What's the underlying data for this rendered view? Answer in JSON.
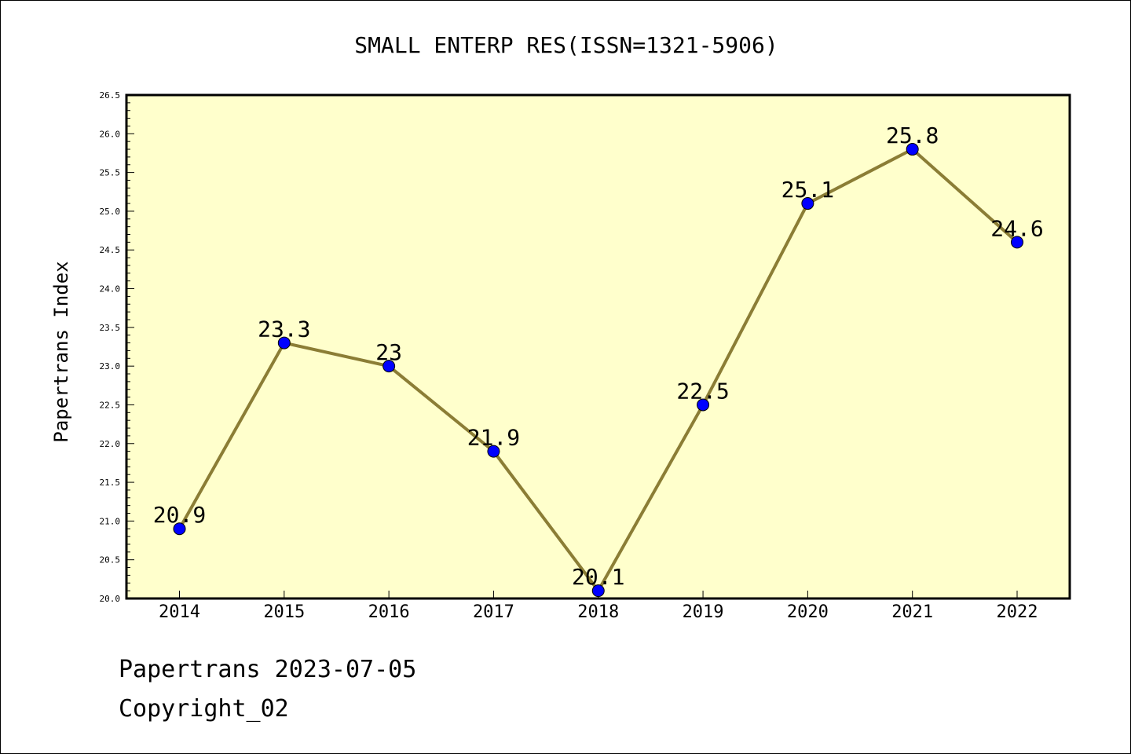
{
  "chart_data": {
    "type": "line",
    "title": "SMALL ENTERP RES(ISSN=1321-5906)",
    "xlabel": "",
    "ylabel": "Papertrans Index",
    "categories": [
      "2014",
      "2015",
      "2016",
      "2017",
      "2018",
      "2019",
      "2020",
      "2021",
      "2022"
    ],
    "series": [
      {
        "values": [
          20.9,
          23.3,
          23.0,
          21.9,
          20.1,
          22.5,
          25.1,
          25.8,
          24.6
        ],
        "labels": [
          "20.9",
          "23.3",
          "23",
          "21.9",
          "20.1",
          "22.5",
          "25.1",
          "25.8",
          "24.6"
        ]
      }
    ],
    "ylim": [
      20.0,
      26.5
    ],
    "yticks": [
      "20.0",
      "20.5",
      "21.0",
      "21.5",
      "22.0",
      "22.5",
      "23.0",
      "23.5",
      "24.0",
      "24.5",
      "25.0",
      "25.5",
      "26.0",
      "26.5"
    ],
    "grid": false,
    "colors": {
      "plot_background": "#ffffcc",
      "line": "#8b7d35",
      "marker": "#0000ff"
    }
  },
  "footer": {
    "line1": "Papertrans 2023-07-05",
    "line2": "Copyright_02"
  }
}
